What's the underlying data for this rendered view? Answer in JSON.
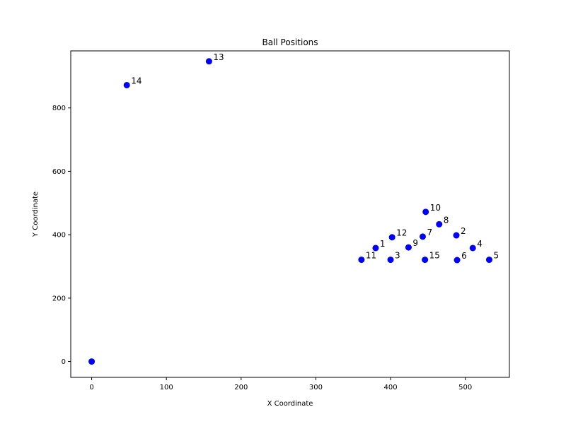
{
  "chart_data": {
    "type": "scatter",
    "title": "Ball Positions",
    "xlabel": "X Coordinate",
    "ylabel": "Y Coordinate",
    "xlim": [
      -28,
      559
    ],
    "ylim": [
      -50,
      980
    ],
    "xticks": [
      0,
      100,
      200,
      300,
      400,
      500
    ],
    "yticks": [
      0,
      200,
      400,
      600,
      800
    ],
    "grid": false,
    "marker_color": "#0000ff",
    "points": [
      {
        "label": "",
        "x": 0,
        "y": 0
      },
      {
        "label": "1",
        "x": 380,
        "y": 358
      },
      {
        "label": "2",
        "x": 488,
        "y": 398
      },
      {
        "label": "3",
        "x": 400,
        "y": 321
      },
      {
        "label": "4",
        "x": 510,
        "y": 358
      },
      {
        "label": "5",
        "x": 532,
        "y": 321
      },
      {
        "label": "6",
        "x": 489,
        "y": 320
      },
      {
        "label": "7",
        "x": 443,
        "y": 394
      },
      {
        "label": "8",
        "x": 465,
        "y": 433
      },
      {
        "label": "9",
        "x": 424,
        "y": 360
      },
      {
        "label": "10",
        "x": 447,
        "y": 472
      },
      {
        "label": "11",
        "x": 361,
        "y": 321
      },
      {
        "label": "12",
        "x": 402,
        "y": 392
      },
      {
        "label": "13",
        "x": 157,
        "y": 947
      },
      {
        "label": "14",
        "x": 47,
        "y": 872
      },
      {
        "label": "15",
        "x": 446,
        "y": 321
      }
    ]
  }
}
